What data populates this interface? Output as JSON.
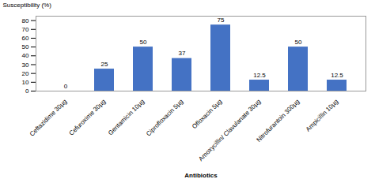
{
  "chart_data": {
    "type": "bar",
    "xlabel": "Antibiotics",
    "ylabel": "Susceptibility (%)",
    "categories": [
      "Ceftazidime 30µg",
      "Cefuroxime 30µg",
      "Gentamicin 10µg",
      "Ciprofloxacin 5µg",
      "Ofloxacin 5µg",
      "Amoxycillin/ Clavulanate 30µg",
      "Nitrofurantoin 300µg",
      "Ampicillin 10µg"
    ],
    "values": [
      0,
      25,
      50,
      37,
      75,
      12.5,
      50,
      12.5
    ],
    "color": "#4472C4",
    "ylim": [
      0,
      85
    ],
    "yticks": [
      0,
      10,
      20,
      30,
      40,
      50,
      60,
      70,
      80
    ],
    "grid": false,
    "data_labels": true
  }
}
